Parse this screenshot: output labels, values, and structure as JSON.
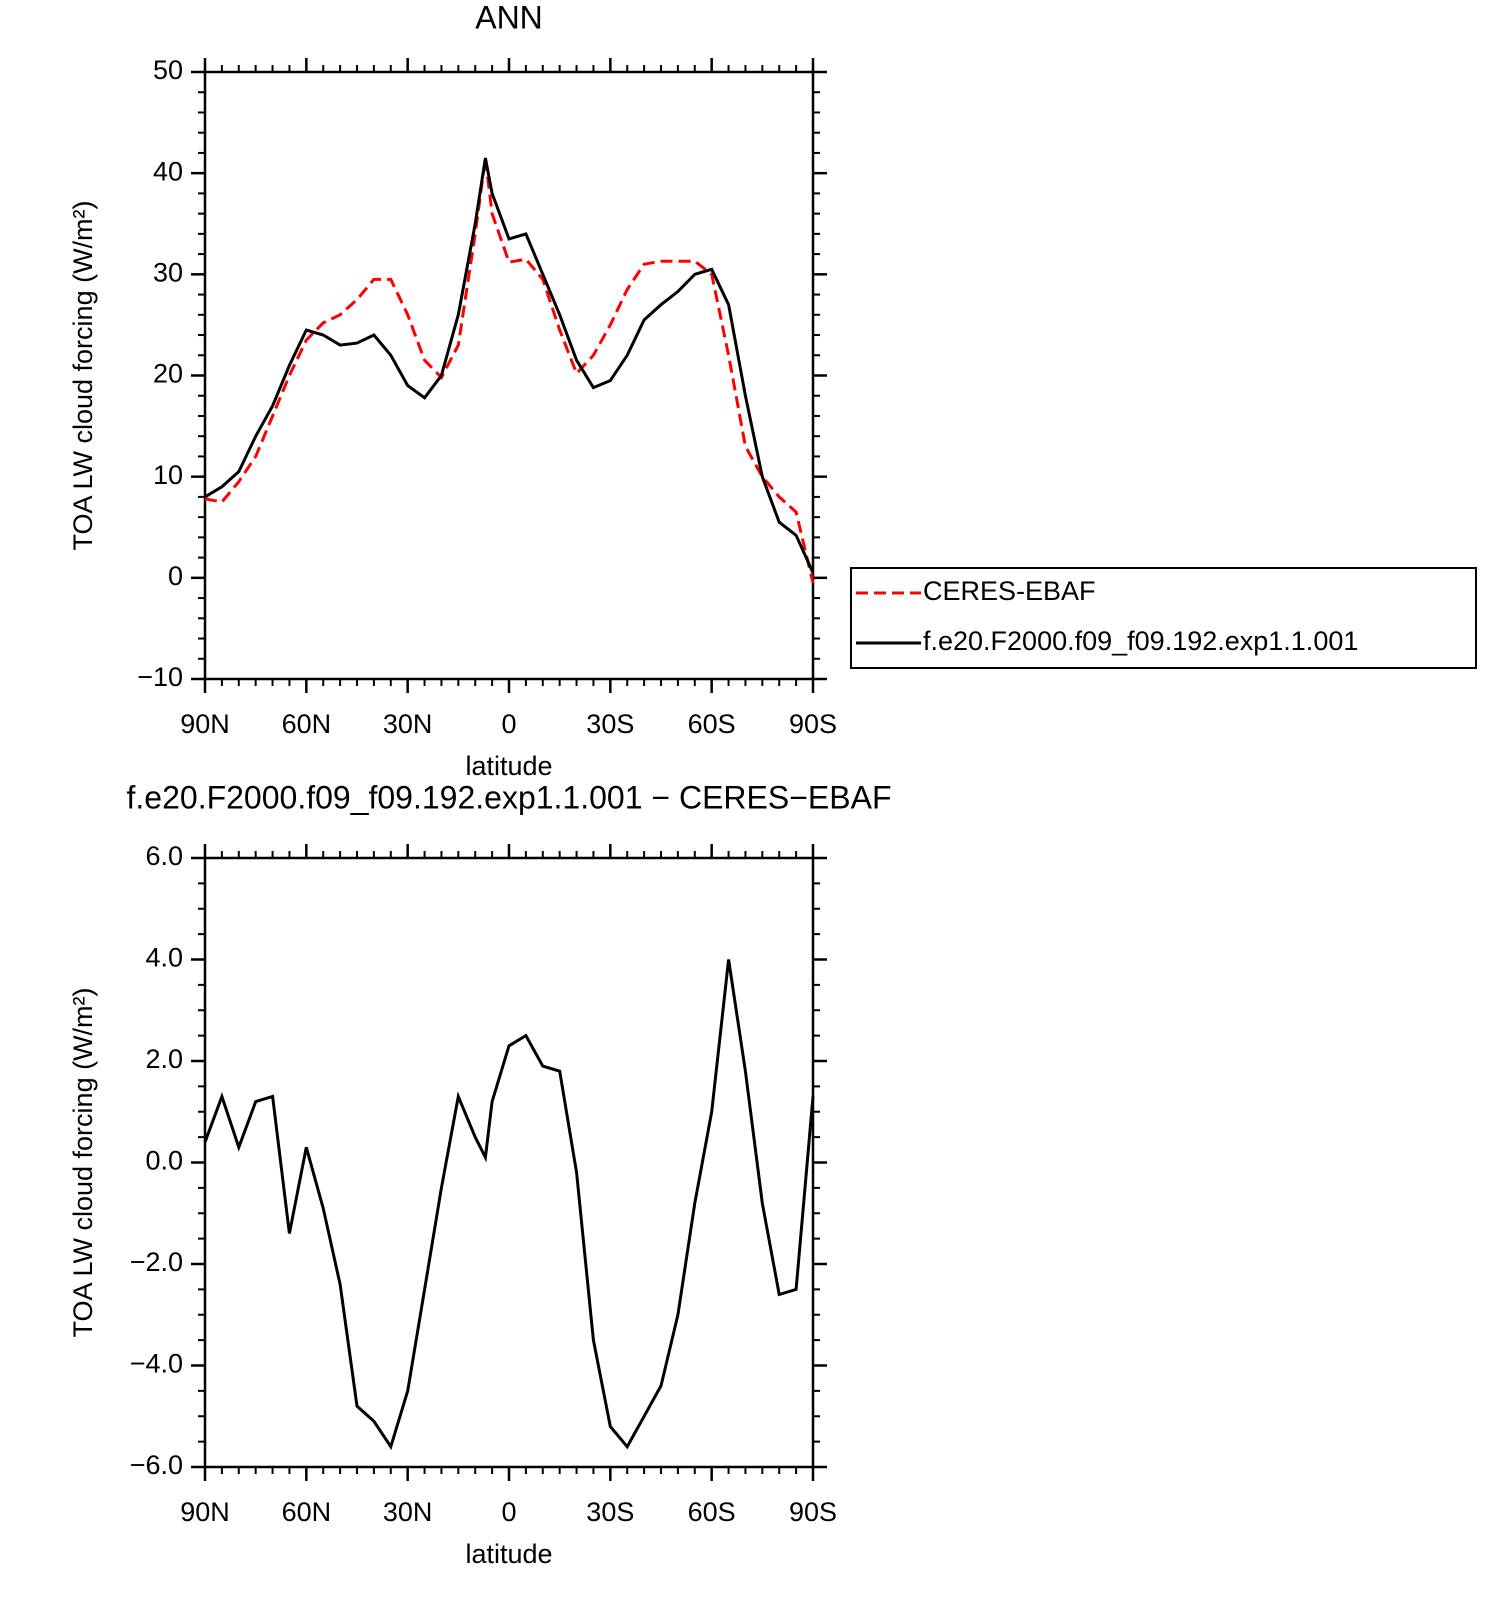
{
  "chart_data": [
    {
      "type": "line",
      "title": "ANN",
      "x_label": "latitude",
      "y_label": "TOA LW cloud forcing (W/m²)",
      "x": [
        90,
        85,
        80,
        75,
        70,
        65,
        60,
        55,
        50,
        45,
        40,
        35,
        30,
        25,
        20,
        15,
        10,
        7,
        5,
        0,
        -5,
        -10,
        -15,
        -20,
        -25,
        -30,
        -35,
        -40,
        -45,
        -50,
        -55,
        -60,
        -65,
        -70,
        -75,
        -80,
        -85,
        -90
      ],
      "series": [
        {
          "name": "CERES-EBAF",
          "color": "#ff0000",
          "linestyle": "dashed",
          "values": [
            7.8,
            7.5,
            9.5,
            12,
            16,
            20,
            23.5,
            25.2,
            26,
            27.5,
            29.5,
            29.5,
            26,
            21.5,
            19.8,
            23,
            34,
            41.5,
            36,
            31.2,
            31.5,
            29.5,
            24.5,
            20.2,
            22,
            25,
            28.5,
            31,
            31.3,
            31.3,
            31.3,
            30,
            22,
            13,
            10,
            8,
            6.5,
            -0.5
          ]
        },
        {
          "name": "f.e20.F2000.f09_f09.192.exp1.1.001",
          "color": "#000000",
          "linestyle": "solid",
          "values": [
            8,
            9,
            10.5,
            14,
            17,
            21,
            24.5,
            24,
            23,
            23.2,
            24,
            22,
            19,
            17.8,
            20,
            26,
            35,
            41.5,
            38,
            33.5,
            34,
            30,
            26,
            21.5,
            18.8,
            19.5,
            22,
            25.5,
            27,
            28.3,
            30,
            30.5,
            27,
            18,
            10,
            5.5,
            4.2,
            0.5
          ]
        }
      ],
      "xlim": [
        90,
        -90
      ],
      "xticks": [
        {
          "value": 90,
          "label": "90N"
        },
        {
          "value": 60,
          "label": "60N"
        },
        {
          "value": 30,
          "label": "30N"
        },
        0,
        {
          "value": -30,
          "label": "30S"
        },
        {
          "value": -60,
          "label": "60S"
        },
        {
          "value": -90,
          "label": "90S"
        }
      ],
      "ylim": [
        -10,
        50
      ],
      "yticks": [
        {
          "value": -10,
          "label": "−10"
        },
        0,
        10,
        20,
        30,
        40,
        50
      ],
      "legend": "right"
    },
    {
      "type": "line",
      "title": "f.e20.F2000.f09_f09.192.exp1.1.001 − CERES−EBAF",
      "x_label": "latitude",
      "y_label": "TOA LW cloud forcing (W/m²)",
      "x": [
        90,
        85,
        80,
        75,
        70,
        65,
        60,
        55,
        50,
        45,
        40,
        35,
        30,
        25,
        20,
        15,
        10,
        7,
        5,
        0,
        -5,
        -10,
        -15,
        -20,
        -25,
        -30,
        -35,
        -40,
        -45,
        -50,
        -55,
        -60,
        -65,
        -70,
        -75,
        -80,
        -85,
        -90
      ],
      "values": [
        0.4,
        1.3,
        0.3,
        1.2,
        1.3,
        -1.4,
        0.3,
        -0.9,
        -2.4,
        -4.8,
        -5.1,
        -5.6,
        -4.5,
        -2.5,
        -0.5,
        1.3,
        0.5,
        0.1,
        1.2,
        2.3,
        2.5,
        1.9,
        1.8,
        -0.2,
        -3.5,
        -5.2,
        -5.6,
        -5,
        -4.4,
        -3,
        -0.8,
        1,
        4,
        1.8,
        -0.8,
        -2.6,
        -2.5,
        1.3
      ],
      "color": "#000000",
      "xlim": [
        90,
        -90
      ],
      "xticks": [
        {
          "value": 90,
          "label": "90N"
        },
        {
          "value": 60,
          "label": "60N"
        },
        {
          "value": 30,
          "label": "30N"
        },
        0,
        {
          "value": -30,
          "label": "30S"
        },
        {
          "value": -60,
          "label": "60S"
        },
        {
          "value": -90,
          "label": "90S"
        }
      ],
      "ylim": [
        -6,
        6
      ],
      "yticks": [
        {
          "value": -6,
          "label": "−6.0"
        },
        {
          "value": -4,
          "label": "−4.0"
        },
        {
          "value": -2,
          "label": "−2.0"
        },
        {
          "value": 0,
          "label": "0.0"
        },
        {
          "value": 2,
          "label": "2.0"
        },
        {
          "value": 4,
          "label": "4.0"
        },
        {
          "value": 6,
          "label": "6.0"
        }
      ]
    }
  ]
}
